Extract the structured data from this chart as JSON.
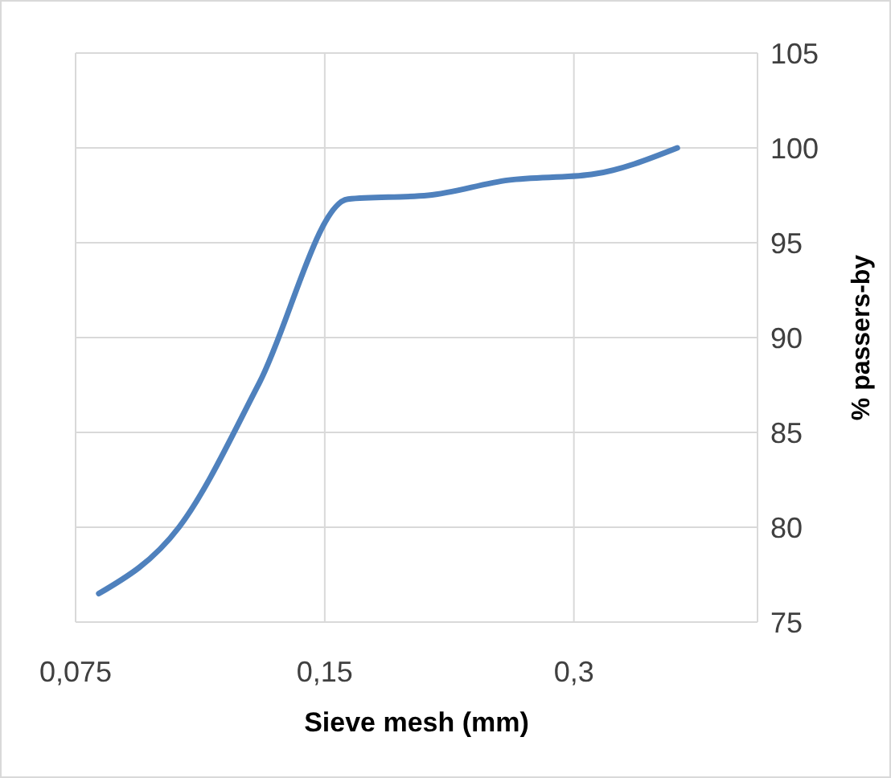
{
  "chart_data": {
    "type": "line",
    "xlabel": "Sieve mesh (mm)",
    "ylabel": "% passers-by",
    "log": "x",
    "xlim": [
      0.075,
      0.5
    ],
    "xticks": [
      {
        "value": 0.075,
        "label": "0,075"
      },
      {
        "value": 0.15,
        "label": "0,15"
      },
      {
        "value": 0.3,
        "label": "0,3"
      }
    ],
    "ylim": [
      75,
      105
    ],
    "yticks": [
      75,
      80,
      85,
      90,
      95,
      100,
      105
    ],
    "grid": true,
    "marker": "none",
    "line_style": "solid",
    "x": [
      0.08,
      0.1,
      0.125,
      0.16,
      0.2,
      0.25,
      0.315,
      0.4
    ],
    "series": [
      {
        "color": "#4f81bd",
        "values": [
          76.5,
          80,
          87.6,
          97.3,
          97.5,
          98.3,
          98.6,
          100
        ]
      }
    ]
  }
}
